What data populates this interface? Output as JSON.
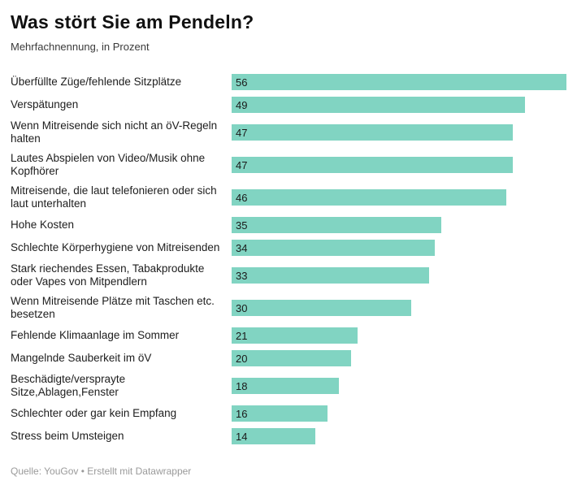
{
  "header": {
    "title": "Was stört Sie am Pendeln?",
    "subtitle": "Mehrfachnennung, in Prozent"
  },
  "footer": {
    "text": "Quelle: YouGov • Erstellt mit Datawrapper"
  },
  "chart_data": {
    "type": "bar",
    "orientation": "horizontal",
    "title": "Was stört Sie am Pendeln?",
    "subtitle": "Mehrfachnennung, in Prozent",
    "source": "Quelle: YouGov • Erstellt mit Datawrapper",
    "xlim": [
      0,
      56
    ],
    "grid": false,
    "legend": false,
    "bar_color": "#81d4c2",
    "value_label_color": "#1a1a1a",
    "categories": [
      "Überfüllte Züge/fehlende Sitzplätze",
      "Verspätungen",
      "Wenn Mitreisende sich nicht an öV-Regeln halten",
      "Lautes Abspielen von Video/Musik ohne Kopfhörer",
      "Mitreisende, die laut telefonieren oder sich laut unterhalten",
      "Hohe Kosten",
      "Schlechte Körperhygiene von Mitreisenden",
      "Stark riechendes Essen, Tabakprodukte oder Vapes von Mitpendlern",
      "Wenn Mitreisende Plätze mit Taschen etc. besetzen",
      "Fehlende Klimaanlage im Sommer",
      "Mangelnde Sauberkeit im öV",
      "Beschädigte/versprayte Sitze,Ablagen,Fenster",
      "Schlechter oder gar kein Empfang",
      "Stress beim Umsteigen"
    ],
    "values": [
      56,
      49,
      47,
      47,
      46,
      35,
      34,
      33,
      30,
      21,
      20,
      18,
      16,
      14
    ]
  }
}
